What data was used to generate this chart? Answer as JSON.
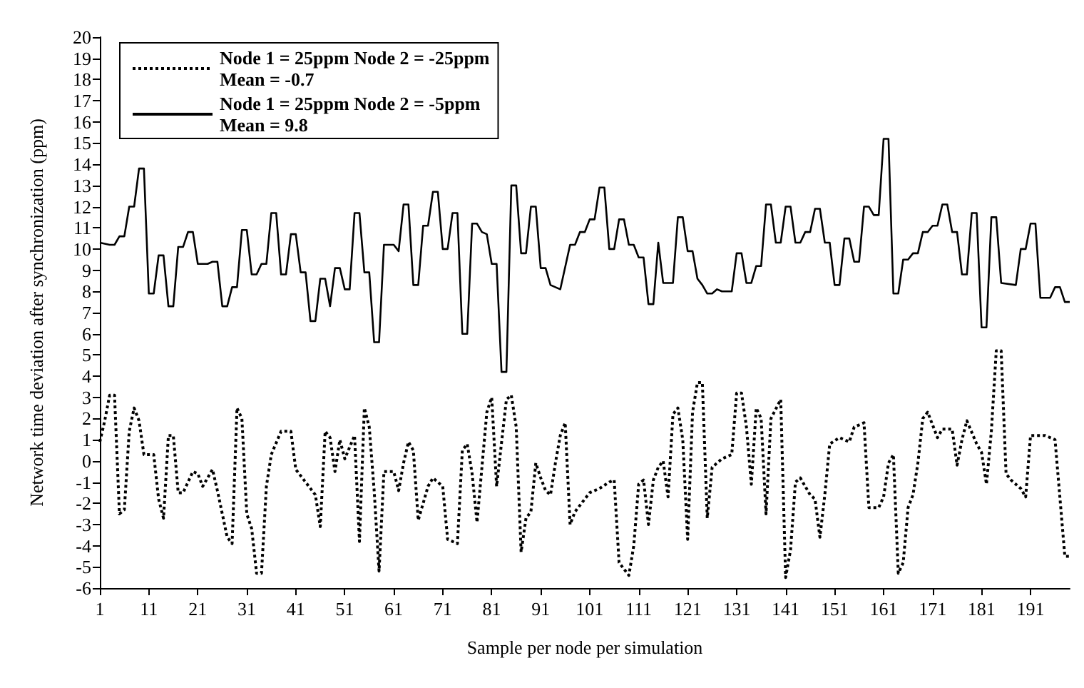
{
  "chart_data": {
    "type": "line",
    "xlabel": "Sample per node per simulation",
    "ylabel": "Network time deviation after synchronization (ppm)",
    "xlim": [
      1,
      199
    ],
    "xticks": [
      1,
      11,
      21,
      31,
      41,
      51,
      61,
      71,
      81,
      91,
      101,
      111,
      121,
      131,
      141,
      151,
      161,
      171,
      181,
      191
    ],
    "ylim": [
      -6,
      20
    ],
    "yticks": [
      -6,
      -5,
      -4,
      -3,
      -2,
      -1,
      0,
      1,
      2,
      3,
      4,
      5,
      6,
      7,
      8,
      9,
      10,
      11,
      12,
      13,
      14,
      15,
      16,
      17,
      18,
      19,
      20
    ],
    "grid": false,
    "legend": "top left",
    "marker": "none",
    "series": [
      {
        "name": "Node 1 = 25ppm Node 2 = -25ppm\nMean = -0.7",
        "color": "#000000",
        "line_style": "dotted",
        "x": [
          1,
          2,
          3,
          4,
          5,
          6,
          7,
          8,
          9,
          10,
          12,
          13,
          14,
          15,
          16,
          17,
          18,
          20,
          21,
          22,
          24,
          25,
          27,
          28,
          29,
          30,
          31,
          32,
          33,
          34,
          35,
          36,
          38,
          40,
          41,
          43,
          45,
          46,
          47,
          48,
          49,
          50,
          51,
          53,
          54,
          55,
          56,
          57,
          58,
          59,
          61,
          62,
          63,
          64,
          65,
          66,
          68,
          69,
          71,
          72,
          74,
          75,
          76,
          77,
          78,
          80,
          81,
          82,
          84,
          85,
          86,
          87,
          88,
          89,
          90,
          91,
          92,
          93,
          94,
          95,
          96,
          97,
          98,
          100,
          101,
          103,
          105,
          106,
          107,
          109,
          110,
          111,
          112,
          113,
          114,
          115,
          116,
          117,
          118,
          119,
          120,
          121,
          122,
          123,
          124,
          125,
          126,
          128,
          130,
          131,
          132,
          133,
          134,
          135,
          136,
          137,
          138,
          140,
          141,
          142,
          143,
          144,
          146,
          147,
          148,
          149,
          150,
          152,
          154,
          155,
          157,
          158,
          160,
          161,
          162,
          163,
          164,
          165,
          166,
          167,
          168,
          169,
          170,
          172,
          173,
          175,
          176,
          177,
          178,
          180,
          181,
          182,
          183,
          184,
          185,
          186,
          187,
          189,
          190,
          191,
          194,
          196,
          198,
          199
        ],
        "values": [
          0.9,
          1.9,
          3.1,
          3.1,
          -2.5,
          -2.3,
          1.4,
          2.5,
          1.9,
          0.3,
          0.3,
          -1.8,
          -2.7,
          1.2,
          1.2,
          -1.5,
          -1.5,
          -0.5,
          -0.6,
          -1.2,
          -0.4,
          -1.4,
          -3.6,
          -3.9,
          2.5,
          2,
          -2.5,
          -3.2,
          -5.3,
          -5.3,
          -1.2,
          0.3,
          1.4,
          1.4,
          -0.4,
          -1,
          -1.6,
          -3.1,
          1.4,
          1.1,
          -0.5,
          1,
          0.1,
          1.2,
          -3.8,
          2.5,
          1.6,
          -1.4,
          -5.2,
          -0.5,
          -0.5,
          -1.4,
          -0.1,
          0.9,
          0.5,
          -2.8,
          -1.2,
          -0.8,
          -1.2,
          -3.7,
          -3.9,
          0.5,
          0.8,
          -0.6,
          -2.9,
          2.3,
          3,
          -1.2,
          2.9,
          3.1,
          1.6,
          -4.3,
          -2.7,
          -2.4,
          -0.1,
          -0.8,
          -1.4,
          -1.6,
          -0.1,
          1.2,
          1.8,
          -3,
          -2.4,
          -1.8,
          -1.5,
          -1.3,
          -1,
          -0.9,
          -4.8,
          -5.4,
          -4,
          -1.1,
          -0.9,
          -3,
          -0.9,
          -0.3,
          0,
          -1.7,
          2.2,
          2.5,
          1,
          -3.7,
          2.3,
          3.7,
          3.7,
          -2.7,
          -0.3,
          0.1,
          0.3,
          3.2,
          3.2,
          1.6,
          -1.1,
          2.5,
          2,
          -2.5,
          2,
          2.9,
          -5.5,
          -4.2,
          -1,
          -0.8,
          -1.6,
          -1.8,
          -3.6,
          -1.6,
          0.8,
          1.1,
          0.9,
          1.6,
          1.8,
          -2.2,
          -2.2,
          -1.7,
          -0.1,
          0.3,
          -5.3,
          -4.8,
          -2.2,
          -1.6,
          -0.1,
          2,
          2.3,
          1.1,
          1.5,
          1.5,
          -0.2,
          1,
          1.9,
          0.8,
          0.4,
          -1.1,
          1.4,
          5.2,
          5.2,
          -0.6,
          -0.9,
          -1.3,
          -1.7,
          1.2,
          1.2,
          1,
          -4.5,
          -4.5
        ]
      },
      {
        "name": "Node 1 = 25ppm Node 2 = -5ppm\nMean = 9.8",
        "color": "#000000",
        "line_style": "solid",
        "x": [
          1,
          3,
          4,
          5,
          6,
          7,
          8,
          9,
          10,
          11,
          12,
          13,
          14,
          15,
          16,
          17,
          18,
          19,
          20,
          21,
          23,
          24,
          25,
          26,
          27,
          28,
          29,
          30,
          31,
          32,
          33,
          34,
          35,
          36,
          37,
          38,
          39,
          40,
          41,
          42,
          43,
          44,
          45,
          46,
          47,
          48,
          49,
          50,
          51,
          52,
          53,
          54,
          55,
          56,
          57,
          58,
          59,
          61,
          62,
          63,
          64,
          65,
          66,
          67,
          68,
          69,
          70,
          71,
          72,
          73,
          74,
          75,
          76,
          77,
          78,
          79,
          80,
          81,
          82,
          83,
          84,
          85,
          86,
          87,
          88,
          89,
          90,
          91,
          92,
          93,
          95,
          97,
          98,
          99,
          100,
          101,
          102,
          103,
          104,
          105,
          106,
          107,
          108,
          109,
          110,
          111,
          112,
          113,
          114,
          115,
          116,
          118,
          119,
          120,
          121,
          122,
          123,
          124,
          125,
          126,
          127,
          128,
          130,
          131,
          132,
          133,
          134,
          135,
          136,
          137,
          138,
          139,
          140,
          141,
          142,
          143,
          144,
          145,
          146,
          147,
          148,
          149,
          150,
          151,
          152,
          153,
          154,
          155,
          156,
          157,
          158,
          159,
          160,
          161,
          162,
          163,
          164,
          165,
          166,
          167,
          168,
          169,
          170,
          171,
          172,
          173,
          174,
          175,
          176,
          177,
          178,
          179,
          180,
          181,
          182,
          183,
          184,
          185,
          188,
          189,
          190,
          191,
          192,
          193,
          195,
          196,
          197,
          198,
          199
        ],
        "values": [
          10.3,
          10.2,
          10.2,
          10.6,
          10.6,
          12,
          12,
          13.8,
          13.8,
          7.9,
          7.9,
          9.7,
          9.7,
          7.3,
          7.3,
          10.1,
          10.1,
          10.8,
          10.8,
          9.3,
          9.3,
          9.4,
          9.4,
          7.3,
          7.3,
          8.2,
          8.2,
          10.9,
          10.9,
          8.8,
          8.8,
          9.3,
          9.3,
          11.7,
          11.7,
          8.8,
          8.8,
          10.7,
          10.7,
          8.9,
          8.9,
          6.6,
          6.6,
          8.6,
          8.6,
          7.3,
          9.1,
          9.1,
          8.1,
          8.1,
          11.7,
          11.7,
          8.9,
          8.9,
          5.6,
          5.6,
          10.2,
          10.2,
          9.9,
          12.1,
          12.1,
          8.3,
          8.3,
          11.1,
          11.1,
          12.7,
          12.7,
          10,
          10,
          11.7,
          11.7,
          6,
          6,
          11.2,
          11.2,
          10.8,
          10.7,
          9.3,
          9.3,
          4.2,
          4.2,
          13,
          13,
          9.8,
          9.8,
          12,
          12,
          9.1,
          9.1,
          8.3,
          8.1,
          10.2,
          10.2,
          10.8,
          10.8,
          11.4,
          11.4,
          12.9,
          12.9,
          10,
          10,
          11.4,
          11.4,
          10.2,
          10.2,
          9.6,
          9.6,
          7.4,
          7.4,
          10.3,
          8.4,
          8.4,
          11.5,
          11.5,
          9.9,
          9.9,
          8.6,
          8.3,
          7.9,
          7.9,
          8.1,
          8,
          8,
          9.8,
          9.8,
          8.4,
          8.4,
          9.2,
          9.2,
          12.1,
          12.1,
          10.3,
          10.3,
          12,
          12,
          10.3,
          10.3,
          10.8,
          10.8,
          11.9,
          11.9,
          10.3,
          10.3,
          8.3,
          8.3,
          10.5,
          10.5,
          9.4,
          9.4,
          12,
          12,
          11.6,
          11.6,
          15.2,
          15.2,
          7.9,
          7.9,
          9.5,
          9.5,
          9.8,
          9.8,
          10.8,
          10.8,
          11.1,
          11.1,
          12.1,
          12.1,
          10.8,
          10.8,
          8.8,
          8.8,
          11.7,
          11.7,
          6.3,
          6.3,
          11.5,
          11.5,
          8.4,
          8.3,
          10,
          10,
          11.2,
          11.2,
          7.7,
          7.7,
          8.2,
          8.2,
          7.5,
          7.5
        ]
      }
    ]
  }
}
